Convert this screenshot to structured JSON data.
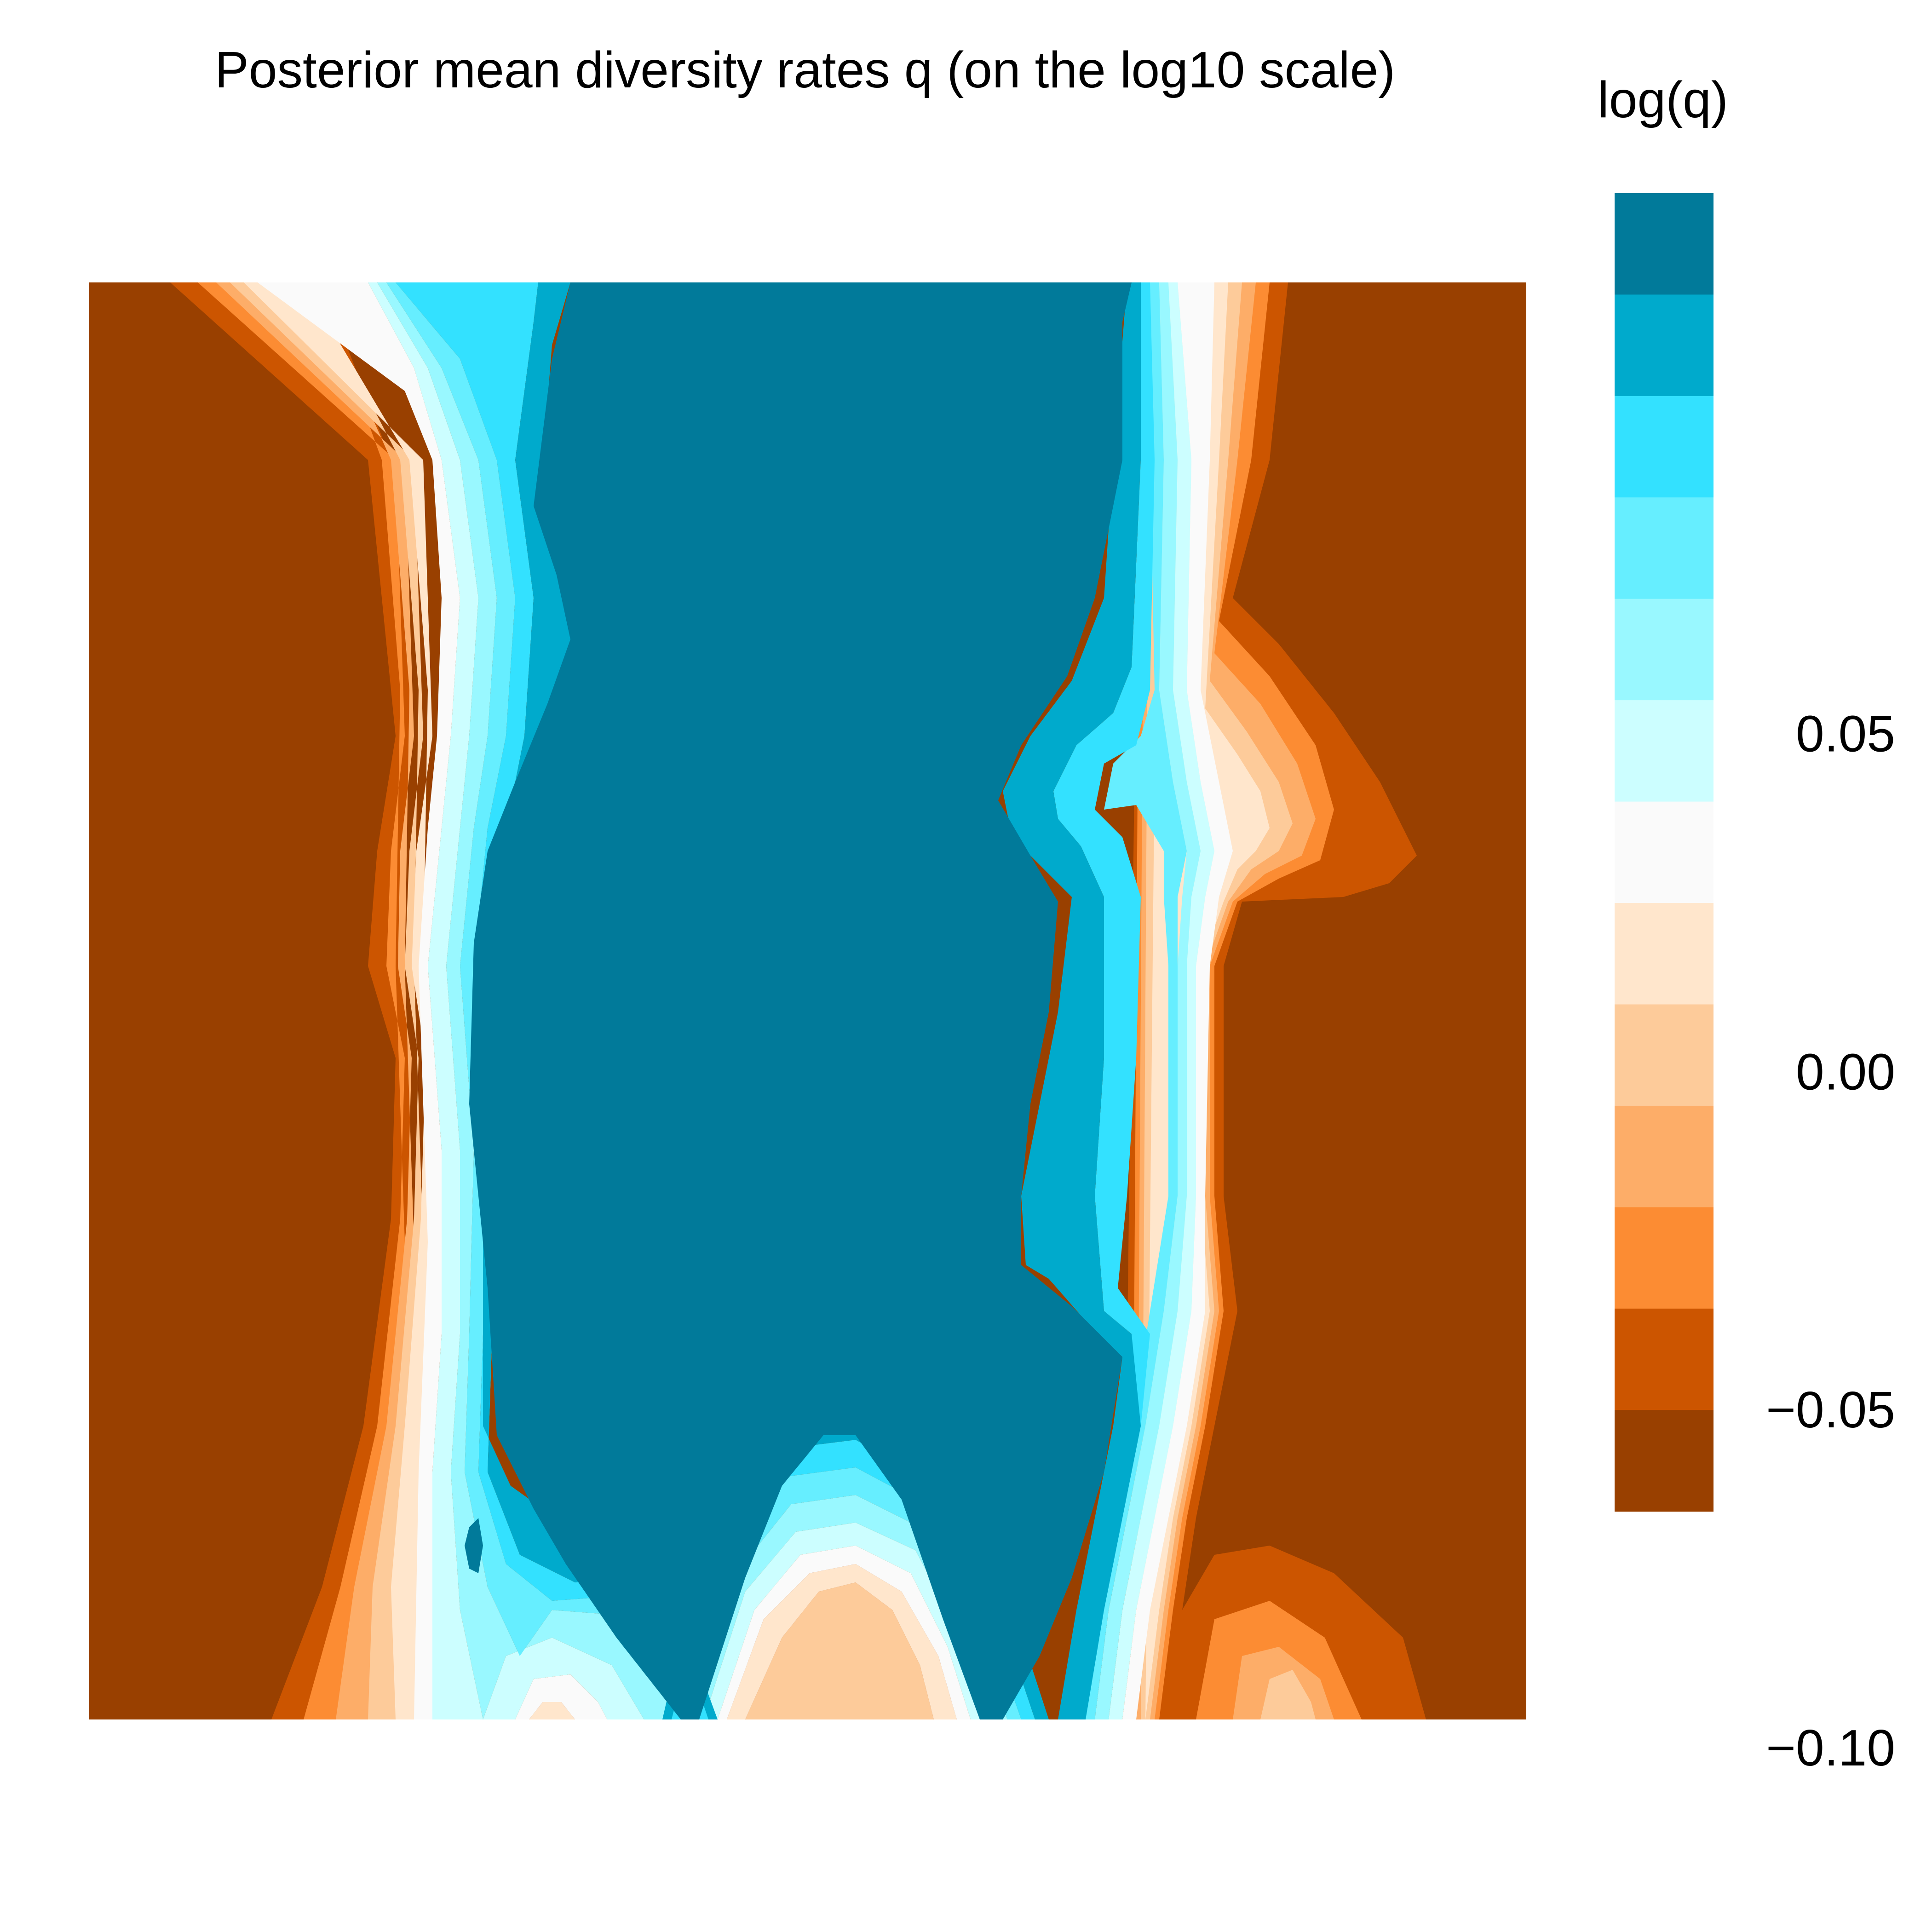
{
  "chart_data": {
    "type": "heatmap",
    "title": "Posterior mean diversity rates q (on the log10 scale)",
    "xlabel": "",
    "ylabel": "",
    "grid": false,
    "axes_visible": false,
    "legend": {
      "title": "log(q)",
      "placement": "right",
      "range": [
        -0.1,
        0.13
      ],
      "ticks": [
        {
          "value": 0.05,
          "label": "0.05"
        },
        {
          "value": 0.0,
          "label": "0.00"
        },
        {
          "value": -0.05,
          "label": "−0.05"
        },
        {
          "value": -0.1,
          "label": "−0.10"
        }
      ],
      "bins": [
        {
          "min": 0.115,
          "max": 0.13,
          "color": "#017A9A"
        },
        {
          "min": 0.1,
          "max": 0.115,
          "color": "#00AACC"
        },
        {
          "min": 0.085,
          "max": 0.1,
          "color": "#33E1FF"
        },
        {
          "min": 0.07,
          "max": 0.085,
          "color": "#66EEFF"
        },
        {
          "min": 0.055,
          "max": 0.07,
          "color": "#99F8FF"
        },
        {
          "min": 0.04,
          "max": 0.055,
          "color": "#CCFEFF"
        },
        {
          "min": 0.025,
          "max": 0.04,
          "color": "#FAFAFA"
        },
        {
          "min": 0.01,
          "max": 0.025,
          "color": "#FFE6CC"
        },
        {
          "min": -0.005,
          "max": 0.01,
          "color": "#FDCB9A"
        },
        {
          "min": -0.02,
          "max": -0.005,
          "color": "#FDAD68"
        },
        {
          "min": -0.035,
          "max": -0.02,
          "color": "#FC8C33"
        },
        {
          "min": -0.05,
          "max": -0.035,
          "color": "#CC5500"
        },
        {
          "min": -0.065,
          "max": -0.05,
          "color": "#994000"
        }
      ]
    }
  }
}
